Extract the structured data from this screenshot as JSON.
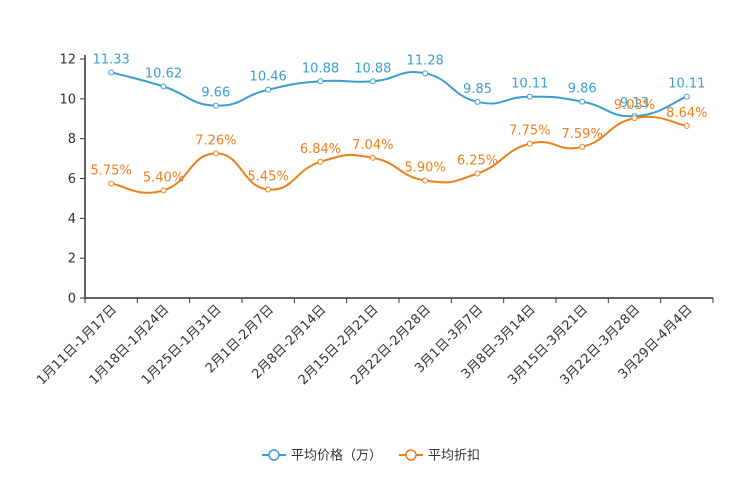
{
  "chart_data": {
    "type": "line",
    "title": "",
    "xlabel": "",
    "ylabel": "",
    "ylim": [
      0,
      12
    ],
    "yticks": [
      0,
      2,
      4,
      6,
      8,
      10,
      12
    ],
    "categories": [
      "1月11日-1月17日",
      "1月18日-1月24日",
      "1月25日-1月31日",
      "2月1日-2月7日",
      "2月8日-2月14日",
      "2月15日-2月21日",
      "2月22日-2月28日",
      "3月1日-3月7日",
      "3月8日-3月14日",
      "3月15日-3月21日",
      "3月22日-3月28日",
      "3月29日-4月4日"
    ],
    "series": [
      {
        "name": "平均价格（万）",
        "color": "#3a9fd0",
        "values": [
          11.33,
          10.62,
          9.66,
          10.46,
          10.88,
          10.88,
          11.28,
          9.85,
          10.11,
          9.86,
          9.13,
          10.11
        ],
        "labels": [
          "11.33",
          "10.62",
          "9.66",
          "10.46",
          "10.88",
          "10.88",
          "11.28",
          "9.85",
          "10.11",
          "9.86",
          "9.13",
          "10.11"
        ]
      },
      {
        "name": "平均折扣",
        "color": "#f07f1a",
        "values": [
          5.75,
          5.4,
          7.26,
          5.45,
          6.84,
          7.04,
          5.9,
          6.25,
          7.75,
          7.59,
          9.03,
          8.64
        ],
        "labels": [
          "5.75%",
          "5.40%",
          "7.26%",
          "5.45%",
          "6.84%",
          "7.04%",
          "5.90%",
          "6.25%",
          "7.75%",
          "7.59%",
          "9.03%",
          "8.64%"
        ]
      }
    ],
    "legend_position": "bottom-center",
    "grid": false
  }
}
